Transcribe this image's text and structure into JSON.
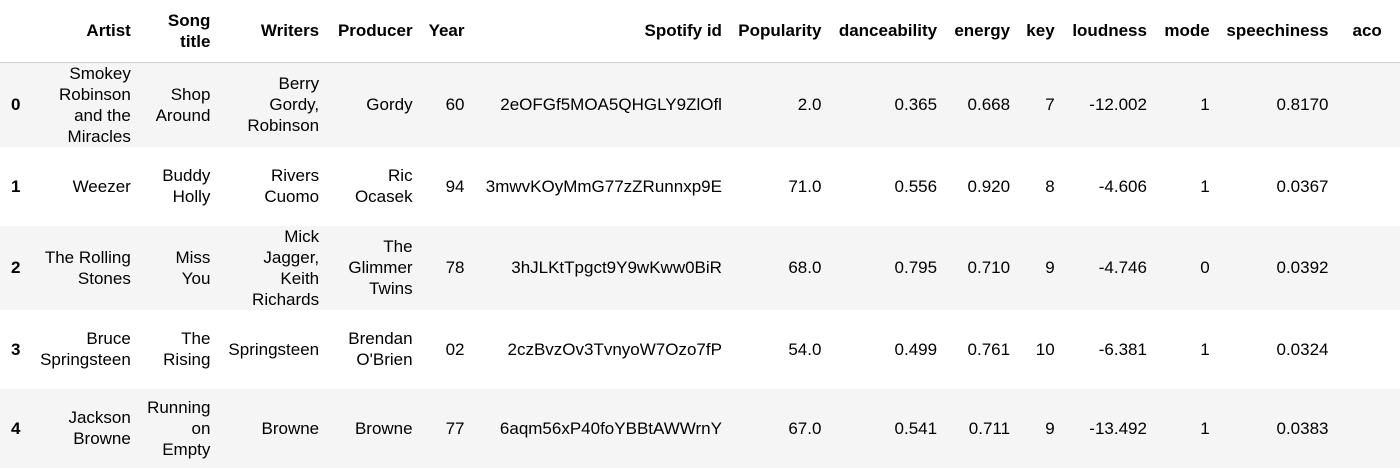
{
  "table": {
    "columns": [
      "",
      "Artist",
      "Song title",
      "Writers",
      "Producer",
      "Year",
      "Spotify id",
      "Popularity",
      "danceability",
      "energy",
      "key",
      "loudness",
      "mode",
      "speechiness",
      "aco"
    ],
    "rows": [
      {
        "index": "0",
        "artist": "Smokey Robinson and the Miracles",
        "song_title": "Shop Around",
        "writers": "Berry Gordy, Robinson",
        "producer": "Gordy",
        "year": "60",
        "spotify_id": "2eOFGf5MOA5QHGLY9ZlOfl",
        "popularity": "2.0",
        "danceability": "0.365",
        "energy": "0.668",
        "key": "7",
        "loudness": "-12.002",
        "mode": "1",
        "speechiness": "0.8170"
      },
      {
        "index": "1",
        "artist": "Weezer",
        "song_title": "Buddy Holly",
        "writers": "Rivers Cuomo",
        "producer": "Ric Ocasek",
        "year": "94",
        "spotify_id": "3mwvKOyMmG77zZRunnxp9E",
        "popularity": "71.0",
        "danceability": "0.556",
        "energy": "0.920",
        "key": "8",
        "loudness": "-4.606",
        "mode": "1",
        "speechiness": "0.0367"
      },
      {
        "index": "2",
        "artist": "The Rolling Stones",
        "song_title": "Miss You",
        "writers": "Mick Jagger, Keith Richards",
        "producer": "The Glimmer Twins",
        "year": "78",
        "spotify_id": "3hJLKtTpgct9Y9wKww0BiR",
        "popularity": "68.0",
        "danceability": "0.795",
        "energy": "0.710",
        "key": "9",
        "loudness": "-4.746",
        "mode": "0",
        "speechiness": "0.0392"
      },
      {
        "index": "3",
        "artist": "Bruce Springsteen",
        "song_title": "The Rising",
        "writers": "Springsteen",
        "producer": "Brendan O'Brien",
        "year": "02",
        "spotify_id": "2czBvzOv3TvnyoW7Ozo7fP",
        "popularity": "54.0",
        "danceability": "0.499",
        "energy": "0.761",
        "key": "10",
        "loudness": "-6.381",
        "mode": "1",
        "speechiness": "0.0324"
      },
      {
        "index": "4",
        "artist": "Jackson Browne",
        "song_title": "Running on Empty",
        "writers": "Browne",
        "producer": "Browne",
        "year": "77",
        "spotify_id": "6aqm56xP40foYBBtAWWrnY",
        "popularity": "67.0",
        "danceability": "0.541",
        "energy": "0.711",
        "key": "9",
        "loudness": "-13.492",
        "mode": "1",
        "speechiness": "0.0383"
      }
    ]
  }
}
